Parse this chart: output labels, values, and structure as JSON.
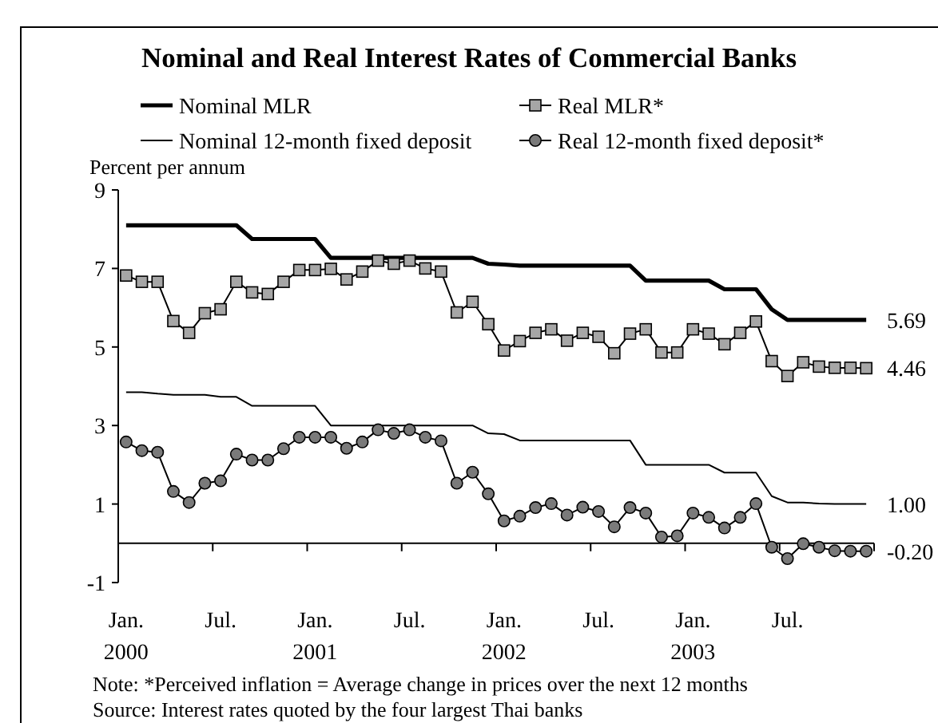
{
  "chart_data": {
    "type": "line",
    "title": "Nominal and Real Interest Rates of Commercial Banks",
    "ylabel": "Percent per annum",
    "categories": [
      "Jan. 2000",
      null,
      null,
      null,
      null,
      null,
      "Jul.",
      null,
      null,
      null,
      null,
      null,
      "Jan. 2001",
      null,
      null,
      null,
      null,
      null,
      "Jul.",
      null,
      null,
      null,
      null,
      null,
      "Jan. 2002",
      null,
      null,
      null,
      null,
      null,
      "Jul.",
      null,
      null,
      null,
      null,
      null,
      "Jan. 2003",
      null,
      null,
      null,
      null,
      null,
      "Jul.",
      null,
      null,
      null,
      null,
      null
    ],
    "ylim": [
      -1,
      9
    ],
    "yticks": [
      -1,
      1,
      3,
      5,
      7,
      9
    ],
    "legend": "top",
    "grid": false,
    "series": [
      {
        "name": "Nominal MLR",
        "color": "#000000",
        "marker": "none",
        "values": [
          8.1,
          8.1,
          8.1,
          8.1,
          8.1,
          8.1,
          8.1,
          8.1,
          7.75,
          7.75,
          7.75,
          7.75,
          7.75,
          7.27,
          7.27,
          7.27,
          7.27,
          7.27,
          7.27,
          7.27,
          7.27,
          7.27,
          7.27,
          7.12,
          7.1,
          7.07,
          7.07,
          7.07,
          7.07,
          7.07,
          7.07,
          7.07,
          7.07,
          6.69,
          6.69,
          6.69,
          6.69,
          6.69,
          6.47,
          6.47,
          6.47,
          5.96,
          5.69,
          5.69,
          5.69,
          5.69,
          5.69,
          5.69
        ],
        "value_labels": [
          null,
          null,
          null,
          null,
          null,
          null,
          null,
          null,
          null,
          null,
          null,
          null,
          null,
          null,
          null,
          null,
          null,
          null,
          null,
          null,
          null,
          null,
          null,
          null,
          null,
          null,
          null,
          null,
          null,
          null,
          null,
          null,
          null,
          null,
          null,
          null,
          null,
          null,
          null,
          null,
          null,
          null,
          null,
          null,
          null,
          null,
          null,
          "5.69"
        ]
      },
      {
        "name": "Real MLR*",
        "color": "#a6a6a6",
        "marker": "square",
        "values": [
          6.82,
          6.66,
          6.66,
          5.66,
          5.36,
          5.86,
          5.96,
          6.66,
          6.39,
          6.35,
          6.66,
          6.96,
          6.96,
          6.99,
          6.72,
          6.92,
          7.2,
          7.12,
          7.2,
          7.0,
          6.92,
          5.88,
          6.15,
          5.58,
          4.91,
          5.15,
          5.36,
          5.45,
          5.16,
          5.36,
          5.26,
          4.84,
          5.34,
          5.45,
          4.86,
          4.86,
          5.45,
          5.34,
          5.07,
          5.36,
          5.65,
          4.64,
          4.26,
          4.61,
          4.5,
          4.47,
          4.47,
          4.46
        ],
        "value_labels": [
          null,
          null,
          null,
          null,
          null,
          null,
          null,
          null,
          null,
          null,
          null,
          null,
          null,
          null,
          null,
          null,
          null,
          null,
          null,
          null,
          null,
          null,
          null,
          null,
          null,
          null,
          null,
          null,
          null,
          null,
          null,
          null,
          null,
          null,
          null,
          null,
          null,
          null,
          null,
          null,
          null,
          null,
          null,
          null,
          null,
          null,
          null,
          "4.46"
        ]
      },
      {
        "name": "Nominal 12-month fixed deposit",
        "color": "#000000",
        "marker": "none",
        "values": [
          3.85,
          3.85,
          3.81,
          3.78,
          3.78,
          3.78,
          3.73,
          3.73,
          3.5,
          3.5,
          3.5,
          3.5,
          3.5,
          3.0,
          3.0,
          3.0,
          3.0,
          3.0,
          3.0,
          3.0,
          3.0,
          3.0,
          3.0,
          2.8,
          2.78,
          2.62,
          2.62,
          2.62,
          2.62,
          2.62,
          2.62,
          2.62,
          2.62,
          2.0,
          2.0,
          2.0,
          2.0,
          2.0,
          1.8,
          1.8,
          1.8,
          1.2,
          1.04,
          1.04,
          1.01,
          1.0,
          1.0,
          1.0
        ],
        "value_labels": [
          null,
          null,
          null,
          null,
          null,
          null,
          null,
          null,
          null,
          null,
          null,
          null,
          null,
          null,
          null,
          null,
          null,
          null,
          null,
          null,
          null,
          null,
          null,
          null,
          null,
          null,
          null,
          null,
          null,
          null,
          null,
          null,
          null,
          null,
          null,
          null,
          null,
          null,
          null,
          null,
          null,
          null,
          null,
          null,
          null,
          null,
          null,
          "1.00"
        ]
      },
      {
        "name": "Real 12-month fixed deposit*",
        "color": "#7a7a7a",
        "marker": "circle",
        "values": [
          2.58,
          2.36,
          2.32,
          1.32,
          1.04,
          1.53,
          1.59,
          2.27,
          2.12,
          2.12,
          2.41,
          2.7,
          2.7,
          2.7,
          2.42,
          2.58,
          2.89,
          2.8,
          2.89,
          2.7,
          2.61,
          1.53,
          1.81,
          1.26,
          0.57,
          0.69,
          0.91,
          1.01,
          0.72,
          0.92,
          0.81,
          0.42,
          0.91,
          0.77,
          0.16,
          0.19,
          0.77,
          0.66,
          0.39,
          0.66,
          1.01,
          -0.1,
          -0.39,
          -0.01,
          -0.1,
          -0.19,
          -0.2,
          -0.2
        ],
        "value_labels": [
          null,
          null,
          null,
          null,
          null,
          null,
          null,
          null,
          null,
          null,
          null,
          null,
          null,
          null,
          null,
          null,
          null,
          null,
          null,
          null,
          null,
          null,
          null,
          null,
          null,
          null,
          null,
          null,
          null,
          null,
          null,
          null,
          null,
          null,
          null,
          null,
          null,
          null,
          null,
          null,
          null,
          null,
          null,
          null,
          null,
          null,
          null,
          "-0.20"
        ]
      }
    ],
    "annotations": [
      "Note:  *Perceived inflation = Average change in prices over the next 12 months",
      "Source: Interest rates quoted by the four largest Thai banks"
    ]
  }
}
